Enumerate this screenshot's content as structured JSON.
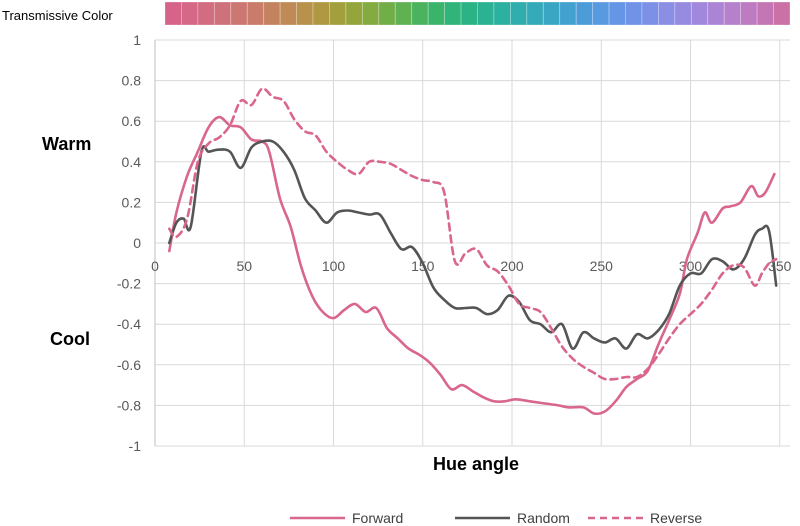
{
  "chart_data": {
    "type": "line",
    "strip_title": "Transmissive Color",
    "xlabel": "Hue angle",
    "ylabel": "",
    "warm_label": "Warm",
    "cool_label": "Cool",
    "xlim": [
      0,
      360
    ],
    "ylim": [
      -1,
      1
    ],
    "x_ticks": [
      0,
      50,
      100,
      150,
      200,
      250,
      300,
      350
    ],
    "y_ticks": [
      1,
      0.8,
      0.6,
      0.4,
      0.2,
      0,
      -0.2,
      -0.4,
      -0.6,
      -0.8,
      -1
    ],
    "grid": true,
    "legend_position": "bottom",
    "series": [
      {
        "name": "Forward",
        "color": "#d9668c",
        "dash": "solid",
        "points": [
          [
            8,
            -0.04
          ],
          [
            12,
            0.15
          ],
          [
            18,
            0.33
          ],
          [
            24,
            0.45
          ],
          [
            30,
            0.57
          ],
          [
            36,
            0.62
          ],
          [
            42,
            0.58
          ],
          [
            48,
            0.57
          ],
          [
            54,
            0.51
          ],
          [
            60,
            0.5
          ],
          [
            64,
            0.45
          ],
          [
            70,
            0.22
          ],
          [
            76,
            0.08
          ],
          [
            82,
            -0.12
          ],
          [
            88,
            -0.26
          ],
          [
            94,
            -0.34
          ],
          [
            100,
            -0.37
          ],
          [
            106,
            -0.33
          ],
          [
            112,
            -0.3
          ],
          [
            118,
            -0.34
          ],
          [
            124,
            -0.32
          ],
          [
            130,
            -0.42
          ],
          [
            136,
            -0.47
          ],
          [
            142,
            -0.52
          ],
          [
            148,
            -0.55
          ],
          [
            154,
            -0.59
          ],
          [
            160,
            -0.65
          ],
          [
            166,
            -0.72
          ],
          [
            172,
            -0.7
          ],
          [
            178,
            -0.73
          ],
          [
            184,
            -0.76
          ],
          [
            190,
            -0.78
          ],
          [
            196,
            -0.78
          ],
          [
            202,
            -0.77
          ],
          [
            210,
            -0.78
          ],
          [
            218,
            -0.79
          ],
          [
            226,
            -0.8
          ],
          [
            232,
            -0.81
          ],
          [
            240,
            -0.81
          ],
          [
            246,
            -0.84
          ],
          [
            252,
            -0.83
          ],
          [
            258,
            -0.78
          ],
          [
            264,
            -0.71
          ],
          [
            270,
            -0.67
          ],
          [
            276,
            -0.63
          ],
          [
            282,
            -0.5
          ],
          [
            288,
            -0.38
          ],
          [
            294,
            -0.25
          ],
          [
            298,
            -0.08
          ],
          [
            304,
            0.05
          ],
          [
            308,
            0.15
          ],
          [
            312,
            0.1
          ],
          [
            318,
            0.17
          ],
          [
            322,
            0.18
          ],
          [
            328,
            0.2
          ],
          [
            334,
            0.28
          ],
          [
            338,
            0.23
          ],
          [
            342,
            0.25
          ],
          [
            347,
            0.34
          ]
        ]
      },
      {
        "name": "Random",
        "color": "#555555",
        "dash": "solid",
        "points": [
          [
            8,
            0.0
          ],
          [
            12,
            0.1
          ],
          [
            16,
            0.12
          ],
          [
            20,
            0.08
          ],
          [
            26,
            0.45
          ],
          [
            30,
            0.45
          ],
          [
            36,
            0.46
          ],
          [
            42,
            0.45
          ],
          [
            48,
            0.37
          ],
          [
            54,
            0.47
          ],
          [
            60,
            0.5
          ],
          [
            66,
            0.5
          ],
          [
            72,
            0.45
          ],
          [
            78,
            0.36
          ],
          [
            84,
            0.22
          ],
          [
            90,
            0.16
          ],
          [
            96,
            0.1
          ],
          [
            102,
            0.15
          ],
          [
            108,
            0.16
          ],
          [
            114,
            0.15
          ],
          [
            120,
            0.14
          ],
          [
            126,
            0.14
          ],
          [
            132,
            0.05
          ],
          [
            138,
            -0.03
          ],
          [
            144,
            -0.02
          ],
          [
            150,
            -0.1
          ],
          [
            156,
            -0.22
          ],
          [
            162,
            -0.28
          ],
          [
            168,
            -0.32
          ],
          [
            174,
            -0.32
          ],
          [
            180,
            -0.32
          ],
          [
            186,
            -0.35
          ],
          [
            192,
            -0.33
          ],
          [
            198,
            -0.26
          ],
          [
            204,
            -0.29
          ],
          [
            210,
            -0.38
          ],
          [
            216,
            -0.4
          ],
          [
            222,
            -0.44
          ],
          [
            228,
            -0.4
          ],
          [
            234,
            -0.52
          ],
          [
            240,
            -0.44
          ],
          [
            246,
            -0.47
          ],
          [
            252,
            -0.49
          ],
          [
            258,
            -0.47
          ],
          [
            264,
            -0.52
          ],
          [
            270,
            -0.45
          ],
          [
            276,
            -0.47
          ],
          [
            282,
            -0.43
          ],
          [
            288,
            -0.35
          ],
          [
            294,
            -0.21
          ],
          [
            300,
            -0.15
          ],
          [
            306,
            -0.15
          ],
          [
            312,
            -0.08
          ],
          [
            318,
            -0.09
          ],
          [
            324,
            -0.13
          ],
          [
            330,
            -0.08
          ],
          [
            336,
            0.04
          ],
          [
            340,
            0.07
          ],
          [
            344,
            0.06
          ],
          [
            348,
            -0.21
          ]
        ]
      },
      {
        "name": "Reverse",
        "color": "#d9668c",
        "dash": "dashed",
        "points": [
          [
            8,
            0.07
          ],
          [
            12,
            0.03
          ],
          [
            18,
            0.12
          ],
          [
            24,
            0.4
          ],
          [
            30,
            0.49
          ],
          [
            36,
            0.52
          ],
          [
            42,
            0.58
          ],
          [
            48,
            0.7
          ],
          [
            54,
            0.68
          ],
          [
            60,
            0.76
          ],
          [
            66,
            0.72
          ],
          [
            72,
            0.7
          ],
          [
            78,
            0.61
          ],
          [
            84,
            0.55
          ],
          [
            90,
            0.53
          ],
          [
            96,
            0.45
          ],
          [
            102,
            0.4
          ],
          [
            108,
            0.36
          ],
          [
            114,
            0.34
          ],
          [
            120,
            0.4
          ],
          [
            126,
            0.4
          ],
          [
            132,
            0.39
          ],
          [
            138,
            0.36
          ],
          [
            144,
            0.33
          ],
          [
            150,
            0.31
          ],
          [
            156,
            0.3
          ],
          [
            162,
            0.25
          ],
          [
            168,
            -0.09
          ],
          [
            174,
            -0.05
          ],
          [
            180,
            -0.03
          ],
          [
            186,
            -0.11
          ],
          [
            192,
            -0.14
          ],
          [
            198,
            -0.21
          ],
          [
            204,
            -0.3
          ],
          [
            210,
            -0.32
          ],
          [
            216,
            -0.34
          ],
          [
            222,
            -0.42
          ],
          [
            228,
            -0.51
          ],
          [
            234,
            -0.57
          ],
          [
            240,
            -0.61
          ],
          [
            246,
            -0.64
          ],
          [
            252,
            -0.67
          ],
          [
            258,
            -0.67
          ],
          [
            264,
            -0.66
          ],
          [
            270,
            -0.66
          ],
          [
            276,
            -0.62
          ],
          [
            282,
            -0.55
          ],
          [
            288,
            -0.47
          ],
          [
            294,
            -0.4
          ],
          [
            300,
            -0.35
          ],
          [
            306,
            -0.3
          ],
          [
            312,
            -0.23
          ],
          [
            318,
            -0.15
          ],
          [
            324,
            -0.11
          ],
          [
            330,
            -0.12
          ],
          [
            336,
            -0.21
          ],
          [
            340,
            -0.15
          ],
          [
            344,
            -0.1
          ],
          [
            348,
            -0.08
          ]
        ]
      }
    ],
    "color_strip": {
      "count": 38,
      "colors": [
        "#d6638a",
        "#d56887",
        "#d26c80",
        "#cf717a",
        "#cc7772",
        "#c97c69",
        "#c4835f",
        "#bf8a55",
        "#b8914b",
        "#ae9942",
        "#a2a03c",
        "#94a63b",
        "#84ab3f",
        "#72ae47",
        "#5fb152",
        "#4bb35e",
        "#3ab46b",
        "#30b479",
        "#2bb386",
        "#2ab293",
        "#2cb0a0",
        "#30adad",
        "#35aab9",
        "#3aa6c4",
        "#42a1cf",
        "#4c9cd8",
        "#589ae0",
        "#6496e5",
        "#7093e7",
        "#7d90e7",
        "#8a8ee5",
        "#968be1",
        "#a188dc",
        "#ab84d5",
        "#b580cc",
        "#bd7bc2",
        "#c476b4",
        "#cb71a5"
      ]
    }
  }
}
